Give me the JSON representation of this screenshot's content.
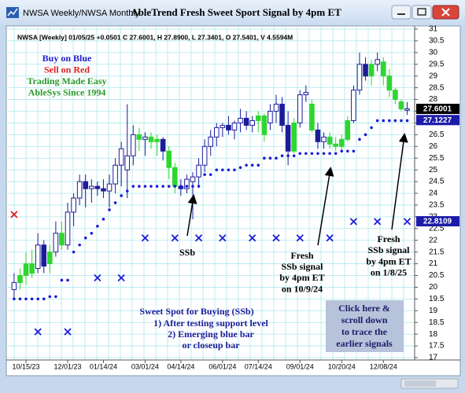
{
  "window_title": "NWSA Weekly/NWSA Monthly",
  "chart_data": {
    "type": "candlestick",
    "title": "AbleTrend Fresh Sweet Sport Signal by 4pm ET",
    "info": "NWSA [Weekly] 01/05/25 +0.0501 C 27.6001, H 27.8900, L 27.3401, O 27.5401, V 4.5594M",
    "categories": [
      null,
      null,
      "10/15/23",
      null,
      null,
      null,
      null,
      null,
      null,
      "12/01/23",
      null,
      null,
      null,
      null,
      null,
      "01/14/24",
      null,
      null,
      null,
      null,
      null,
      null,
      "03/01/24",
      null,
      null,
      null,
      null,
      null,
      "04/14/24",
      null,
      null,
      null,
      null,
      null,
      null,
      "06/01/24",
      null,
      null,
      null,
      null,
      null,
      "07/14/24",
      null,
      null,
      null,
      null,
      null,
      null,
      "09/01/24",
      null,
      null,
      null,
      null,
      null,
      null,
      "10/20/24",
      null,
      null,
      null,
      null,
      null,
      null,
      "12/08/24",
      null,
      null,
      null,
      null
    ],
    "open": [
      19.9,
      20.2,
      20.5,
      21.0,
      20.8,
      21.8,
      21.0,
      21.5,
      22.3,
      21.8,
      23.2,
      23.8,
      24.5,
      24.2,
      24.3,
      24.2,
      24.1,
      24.4,
      25.2,
      25.0,
      25.6,
      26.5,
      26.3,
      26.4,
      26.2,
      26.3,
      25.8,
      25.1,
      24.3,
      24.2,
      24.5,
      24.7,
      25.2,
      26.0,
      26.4,
      26.8,
      26.9,
      26.7,
      27.0,
      27.2,
      26.9,
      27.1,
      27.3,
      27.0,
      27.5,
      27.8,
      26.9,
      25.8,
      27.0,
      28.2,
      27.8,
      26.7,
      26.2,
      26.4,
      26.1,
      26.0,
      26.3,
      27.1,
      28.4,
      29.5,
      29.0,
      29.5,
      29.6,
      29.0,
      28.4,
      27.9,
      27.5401
    ],
    "high": [
      20.6,
      20.8,
      21.5,
      21.6,
      22.3,
      22.0,
      21.8,
      22.8,
      22.8,
      23.6,
      24.0,
      24.8,
      24.8,
      24.6,
      24.5,
      24.6,
      24.8,
      25.5,
      26.2,
      27.8,
      26.9,
      26.8,
      26.6,
      26.6,
      26.5,
      26.4,
      26.0,
      25.3,
      24.6,
      24.8,
      24.9,
      25.5,
      26.3,
      26.7,
      27.0,
      27.0,
      27.3,
      27.1,
      27.6,
      27.5,
      27.3,
      27.5,
      27.4,
      27.8,
      28.2,
      28.1,
      27.5,
      27.2,
      28.4,
      28.6,
      28.0,
      27.0,
      26.6,
      26.6,
      26.4,
      26.5,
      27.3,
      28.6,
      30.0,
      29.8,
      29.7,
      30.0,
      29.8,
      29.3,
      28.5,
      28.0,
      27.89
    ],
    "low": [
      19.5,
      19.9,
      20.1,
      20.4,
      20.6,
      20.6,
      20.6,
      21.3,
      21.6,
      21.6,
      22.6,
      23.5,
      23.4,
      23.6,
      23.9,
      23.8,
      23.4,
      24.0,
      24.3,
      23.8,
      25.2,
      25.8,
      25.6,
      25.9,
      25.6,
      25.4,
      24.6,
      24.0,
      23.9,
      24.0,
      22.9,
      24.3,
      24.9,
      25.6,
      26.0,
      26.4,
      26.5,
      26.3,
      26.6,
      26.7,
      26.6,
      26.6,
      26.2,
      26.7,
      27.0,
      26.6,
      25.2,
      25.7,
      26.8,
      27.9,
      26.6,
      25.9,
      25.9,
      25.9,
      25.8,
      25.8,
      26.2,
      27.0,
      28.2,
      28.8,
      28.6,
      29.2,
      28.6,
      28.1,
      27.8,
      27.5,
      27.3401
    ],
    "close": [
      20.2,
      20.5,
      21.0,
      20.6,
      21.8,
      20.9,
      21.5,
      22.3,
      21.8,
      23.2,
      23.8,
      24.5,
      24.2,
      24.3,
      24.2,
      24.1,
      24.4,
      25.2,
      25.9,
      25.6,
      26.5,
      26.3,
      26.4,
      26.2,
      26.3,
      25.8,
      25.1,
      24.3,
      24.2,
      24.6,
      24.7,
      25.2,
      26.0,
      26.4,
      26.8,
      26.9,
      26.7,
      27.0,
      27.2,
      26.9,
      27.1,
      27.3,
      26.5,
      27.5,
      27.8,
      26.9,
      25.8,
      27.0,
      28.2,
      28.3,
      26.7,
      26.2,
      26.4,
      26.1,
      26.0,
      26.3,
      27.1,
      28.4,
      29.5,
      29.0,
      29.5,
      29.7,
      29.0,
      28.4,
      28.0,
      27.6,
      27.6001
    ],
    "palette": {
      "blue": "#1c1c9a",
      "green": "#2ed62e"
    },
    "bar_colors": [
      "blue",
      "green",
      "green",
      "green",
      "blue",
      "blue",
      "green",
      "blue",
      "green",
      "blue",
      "blue",
      "blue",
      "blue",
      "blue",
      "blue",
      "blue",
      "blue",
      "blue",
      "blue",
      "blue",
      "blue",
      "green",
      "blue",
      "green",
      "green",
      "blue",
      "green",
      "green",
      "blue",
      "blue",
      "blue",
      "blue",
      "blue",
      "blue",
      "blue",
      "blue",
      "blue",
      "blue",
      "blue",
      "blue",
      "blue",
      "green",
      "green",
      "blue",
      "blue",
      "blue",
      "blue",
      "green",
      "blue",
      "blue",
      "green",
      "blue",
      "blue",
      "green",
      "green",
      "green",
      "green",
      "blue",
      "blue",
      "blue",
      "green",
      "blue",
      "green",
      "green",
      "green",
      "green",
      "blue"
    ],
    "stops": [
      19.5,
      19.5,
      19.5,
      19.5,
      19.5,
      19.5,
      19.6,
      19.6,
      20.3,
      20.3,
      21.5,
      21.8,
      22.1,
      22.3,
      22.6,
      22.9,
      23.3,
      23.6,
      23.9,
      24.1,
      24.3,
      24.3,
      24.3,
      24.3,
      24.3,
      24.3,
      24.3,
      24.3,
      24.3,
      24.3,
      24.3,
      24.3,
      24.8,
      24.8,
      25.0,
      25.0,
      25.0,
      25.0,
      25.1,
      25.2,
      25.2,
      25.2,
      25.5,
      25.5,
      25.5,
      25.6,
      25.6,
      25.6,
      25.7,
      25.7,
      25.7,
      25.7,
      25.7,
      25.7,
      25.7,
      25.8,
      25.8,
      25.8,
      26.3,
      26.5,
      26.8,
      27.1,
      27.1,
      27.1,
      27.1,
      27.1,
      27.1
    ],
    "stop_color": "#1c1cd8",
    "buy_marks": [
      null,
      null,
      null,
      null,
      18.1,
      null,
      null,
      null,
      null,
      18.1,
      null,
      null,
      null,
      null,
      20.4,
      null,
      null,
      null,
      20.4,
      null,
      null,
      null,
      22.1,
      null,
      null,
      null,
      null,
      22.1,
      null,
      null,
      null,
      22.1,
      null,
      null,
      null,
      22.1,
      null,
      null,
      null,
      null,
      22.1,
      null,
      null,
      null,
      22.1,
      null,
      null,
      null,
      22.1,
      null,
      null,
      null,
      null,
      22.1,
      null,
      null,
      null,
      22.8,
      null,
      null,
      null,
      22.8,
      null,
      null,
      null,
      null,
      22.8
    ],
    "buy_color": "#1c1cd8",
    "sell_marks": [
      23.1,
      null,
      null,
      null,
      null,
      null,
      null,
      null,
      null,
      null,
      null,
      null,
      null,
      null,
      null,
      null,
      null,
      null,
      null,
      null,
      null,
      null,
      null,
      null,
      null,
      null,
      null,
      null,
      null,
      null,
      null,
      null,
      null,
      null,
      null,
      null,
      null,
      null,
      null,
      null,
      null,
      null,
      null,
      null,
      null,
      null,
      null,
      null,
      null,
      null,
      null,
      null,
      null,
      null,
      null,
      null,
      null,
      null,
      null,
      null,
      null,
      null,
      null,
      null,
      null,
      null,
      null
    ],
    "sell_color": "#e02020",
    "price_labels": [
      {
        "value": 27.6001,
        "color": "#000000"
      },
      {
        "value": 27.1227,
        "color": "#1c1ca8"
      },
      {
        "value": 22.8109,
        "color": "#1c1ca8"
      }
    ],
    "ylim": [
      17,
      31
    ],
    "yticks": [
      17,
      17.5,
      18,
      18.5,
      19,
      19.5,
      20,
      20.5,
      21,
      21.5,
      22,
      22.5,
      23,
      23.5,
      24,
      24.5,
      25,
      25.5,
      26,
      26.5,
      27,
      27.5,
      28,
      28.5,
      29,
      29.5,
      30,
      30.5,
      31
    ],
    "grid": true,
    "legend_lines": [
      {
        "text": "Buy on Blue",
        "color": "#1c1cd0"
      },
      {
        "text": "Sell on Red",
        "color": "#e02020"
      },
      {
        "text": "Trading Made Easy",
        "color": "#2a9a2a"
      },
      {
        "text": "AbleSys Since 1994",
        "color": "#2a9a2a"
      }
    ],
    "annotations": {
      "ssb": "SSb",
      "fresh_1": [
        "Fresh",
        "SSb signal",
        "by 4pm ET",
        "on 10/9/24"
      ],
      "fresh_2": [
        "Fresh",
        "SSb signal",
        "by 4pm ET",
        "on 1/8/25"
      ],
      "sweet_spot_title": "Sweet Spot for Buying (SSb)",
      "sweet_spot_lines": [
        "1) After testing support level",
        "2) Emerging blue bar",
        "or closeup bar"
      ],
      "click_box": [
        "Click here &",
        "scroll down",
        "to trace the",
        "earlier signals"
      ]
    }
  }
}
